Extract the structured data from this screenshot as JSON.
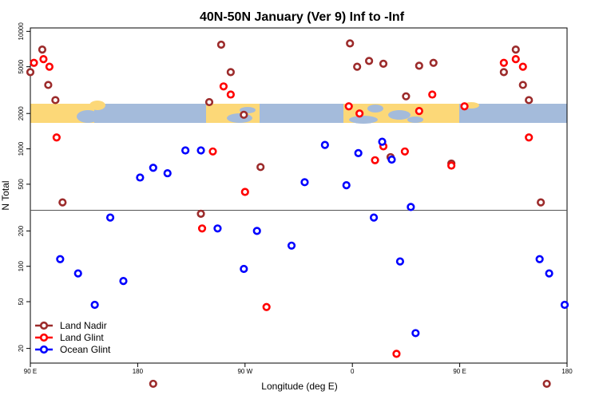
{
  "chart_data": {
    "type": "scatter",
    "title": "40N-50N January (Ver 9)   Inf to -Inf",
    "xlabel": "Longitude (deg E)",
    "ylabel": "N Total",
    "y_scale": "log",
    "x_ticks": [
      "90 E",
      "180",
      "90 W",
      "0",
      "90 E",
      "180"
    ],
    "y_ticks": [
      "10000",
      "5000",
      "2000",
      "1000",
      "500",
      "200",
      "100",
      "50",
      "20"
    ],
    "map_band": {
      "land_color": "#fcd878",
      "ocean_color": "#a4bbdb"
    },
    "reference_line": 300,
    "legend": {
      "position": "bottom-left"
    },
    "series": [
      {
        "name": "Land Nadir",
        "color": "#9c2b2b",
        "points": [
          [
            90,
            4500
          ],
          [
            100,
            7000
          ],
          [
            105,
            3500
          ],
          [
            111,
            2600
          ],
          [
            117,
            350
          ],
          [
            193,
            10
          ],
          [
            233,
            280
          ],
          [
            240,
            2500
          ],
          [
            250,
            7700
          ],
          [
            258,
            4500
          ],
          [
            269,
            1950
          ],
          [
            283,
            700
          ],
          [
            358,
            7900
          ],
          [
            364,
            5000
          ],
          [
            374,
            5600
          ],
          [
            386,
            5300
          ],
          [
            392,
            850
          ],
          [
            405,
            2800
          ],
          [
            416,
            5100
          ],
          [
            428,
            5400
          ],
          [
            443,
            750
          ],
          [
            487,
            4500
          ],
          [
            497,
            7000
          ],
          [
            503,
            3500
          ],
          [
            508,
            2600
          ],
          [
            518,
            350
          ],
          [
            523,
            10
          ]
        ]
      },
      {
        "name": "Land Glint",
        "color": "#ff0000",
        "points": [
          [
            93,
            5400
          ],
          [
            101,
            5800
          ],
          [
            106,
            5000
          ],
          [
            112,
            1250
          ],
          [
            234,
            210
          ],
          [
            243,
            950
          ],
          [
            252,
            3400
          ],
          [
            258,
            2900
          ],
          [
            270,
            430
          ],
          [
            288,
            45
          ],
          [
            357,
            2300
          ],
          [
            366,
            2000
          ],
          [
            379,
            800
          ],
          [
            386,
            1050
          ],
          [
            397,
            18
          ],
          [
            404,
            950
          ],
          [
            416,
            2100
          ],
          [
            427,
            2900
          ],
          [
            443,
            720
          ],
          [
            454,
            2300
          ],
          [
            487,
            5400
          ],
          [
            497,
            5800
          ],
          [
            503,
            5000
          ],
          [
            508,
            1250
          ]
        ]
      },
      {
        "name": "Ocean Glint",
        "color": "#0000ff",
        "points": [
          [
            115,
            115
          ],
          [
            130,
            87
          ],
          [
            144,
            47
          ],
          [
            157,
            260
          ],
          [
            168,
            75
          ],
          [
            182,
            570
          ],
          [
            193,
            690
          ],
          [
            205,
            620
          ],
          [
            220,
            970
          ],
          [
            233,
            970
          ],
          [
            247,
            210
          ],
          [
            269,
            95
          ],
          [
            280,
            200
          ],
          [
            309,
            150
          ],
          [
            320,
            520
          ],
          [
            337,
            1080
          ],
          [
            355,
            490
          ],
          [
            365,
            920
          ],
          [
            378,
            260
          ],
          [
            385,
            1150
          ],
          [
            393,
            810
          ],
          [
            400,
            110
          ],
          [
            409,
            320
          ],
          [
            413,
            27
          ],
          [
            517,
            115
          ],
          [
            525,
            87
          ],
          [
            538,
            47
          ],
          [
            546,
            260
          ],
          [
            548,
            75
          ]
        ]
      }
    ]
  }
}
